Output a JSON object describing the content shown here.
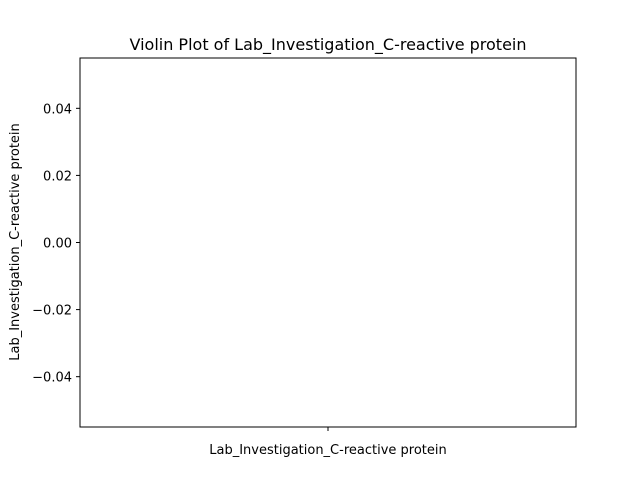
{
  "chart_data": {
    "type": "violin",
    "title": "Violin Plot of Lab_Investigation_C-reactive protein",
    "xlabel": "",
    "ylabel": "Lab_Investigation_C-reactive protein",
    "categories": [
      "Lab_Investigation_C-reactive protein"
    ],
    "series": [
      {
        "values": []
      }
    ],
    "ylim": [
      -0.055,
      0.055
    ],
    "yticks": [
      0.04,
      0.02,
      0.0,
      -0.02,
      -0.04
    ],
    "ytick_labels": [
      "0.04",
      "0.02",
      "0.00",
      "−0.02",
      "−0.04"
    ],
    "grid": false,
    "colors": {
      "axis": "#000000",
      "background": "#ffffff"
    }
  }
}
